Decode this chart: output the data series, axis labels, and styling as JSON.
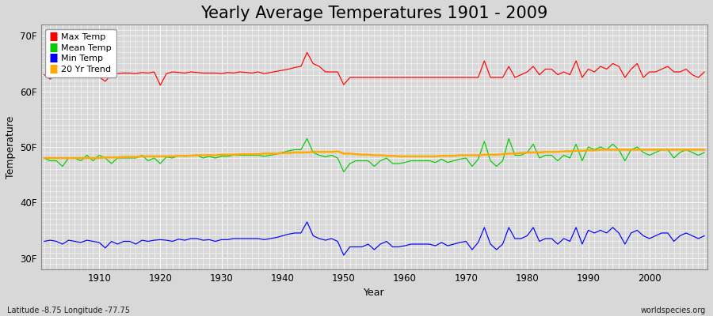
{
  "title": "Yearly Average Temperatures 1901 - 2009",
  "xlabel": "Year",
  "ylabel": "Temperature",
  "bottom_left": "Latitude -8.75 Longitude -77.75",
  "bottom_right": "worldspecies.org",
  "years": [
    1901,
    1902,
    1903,
    1904,
    1905,
    1906,
    1907,
    1908,
    1909,
    1910,
    1911,
    1912,
    1913,
    1914,
    1915,
    1916,
    1917,
    1918,
    1919,
    1920,
    1921,
    1922,
    1923,
    1924,
    1925,
    1926,
    1927,
    1928,
    1929,
    1930,
    1931,
    1932,
    1933,
    1934,
    1935,
    1936,
    1937,
    1938,
    1939,
    1940,
    1941,
    1942,
    1943,
    1944,
    1945,
    1946,
    1947,
    1948,
    1949,
    1950,
    1951,
    1952,
    1953,
    1954,
    1955,
    1956,
    1957,
    1958,
    1959,
    1960,
    1961,
    1962,
    1963,
    1964,
    1965,
    1966,
    1967,
    1968,
    1969,
    1970,
    1971,
    1972,
    1973,
    1974,
    1975,
    1976,
    1977,
    1978,
    1979,
    1980,
    1981,
    1982,
    1983,
    1984,
    1985,
    1986,
    1987,
    1988,
    1989,
    1990,
    1991,
    1992,
    1993,
    1994,
    1995,
    1996,
    1997,
    1998,
    1999,
    2000,
    2001,
    2002,
    2003,
    2004,
    2005,
    2006,
    2007,
    2008,
    2009
  ],
  "max_temp": [
    63.0,
    62.2,
    63.2,
    63.3,
    63.4,
    63.3,
    63.5,
    63.0,
    63.2,
    62.6,
    61.8,
    63.1,
    63.2,
    63.3,
    63.3,
    63.2,
    63.4,
    63.3,
    63.5,
    61.1,
    63.2,
    63.5,
    63.4,
    63.3,
    63.5,
    63.4,
    63.3,
    63.3,
    63.3,
    63.2,
    63.4,
    63.3,
    63.5,
    63.4,
    63.3,
    63.5,
    63.2,
    63.4,
    63.6,
    63.8,
    64.0,
    64.3,
    64.5,
    67.0,
    65.0,
    64.5,
    63.5,
    63.5,
    63.5,
    61.2,
    62.5,
    62.5,
    62.5,
    62.5,
    62.5,
    62.5,
    62.5,
    62.5,
    62.5,
    62.5,
    62.5,
    62.5,
    62.5,
    62.5,
    62.5,
    62.5,
    62.5,
    62.5,
    62.5,
    62.5,
    62.5,
    62.5,
    65.5,
    62.5,
    62.5,
    62.5,
    64.5,
    62.5,
    63.0,
    63.5,
    64.5,
    63.0,
    64.0,
    64.0,
    63.0,
    63.5,
    63.0,
    65.5,
    62.5,
    64.0,
    63.5,
    64.5,
    64.0,
    65.0,
    64.5,
    62.5,
    64.0,
    65.0,
    62.5,
    63.5,
    63.5,
    64.0,
    64.5,
    63.5,
    63.5,
    64.0,
    63.0,
    62.5,
    63.5
  ],
  "mean_temp": [
    48.0,
    47.5,
    47.5,
    46.5,
    48.0,
    48.0,
    47.5,
    48.5,
    47.5,
    48.5,
    48.0,
    47.0,
    48.0,
    48.0,
    48.0,
    48.0,
    48.5,
    47.5,
    48.0,
    47.0,
    48.2,
    48.0,
    48.5,
    48.3,
    48.5,
    48.5,
    48.0,
    48.3,
    48.0,
    48.3,
    48.3,
    48.5,
    48.5,
    48.5,
    48.5,
    48.5,
    48.3,
    48.5,
    48.7,
    49.0,
    49.3,
    49.5,
    49.5,
    51.5,
    49.0,
    48.5,
    48.2,
    48.5,
    48.0,
    45.5,
    47.0,
    47.5,
    47.5,
    47.5,
    46.5,
    47.5,
    48.0,
    47.0,
    47.0,
    47.2,
    47.5,
    47.5,
    47.5,
    47.5,
    47.2,
    47.8,
    47.2,
    47.5,
    47.8,
    48.0,
    46.5,
    47.8,
    51.0,
    47.5,
    46.5,
    47.5,
    51.5,
    48.5,
    48.5,
    49.0,
    50.5,
    48.0,
    48.5,
    48.5,
    47.5,
    48.5,
    48.0,
    50.5,
    47.5,
    50.0,
    49.5,
    50.0,
    49.5,
    50.5,
    49.5,
    47.5,
    49.5,
    50.0,
    49.0,
    48.5,
    49.0,
    49.5,
    49.5,
    48.0,
    49.0,
    49.5,
    49.0,
    48.5,
    49.0
  ],
  "min_temp": [
    33.0,
    33.2,
    33.0,
    32.5,
    33.2,
    33.0,
    32.8,
    33.2,
    33.0,
    32.8,
    31.8,
    33.0,
    32.5,
    33.0,
    33.0,
    32.5,
    33.2,
    33.0,
    33.2,
    33.3,
    33.2,
    33.0,
    33.4,
    33.2,
    33.5,
    33.5,
    33.2,
    33.3,
    33.0,
    33.3,
    33.3,
    33.5,
    33.5,
    33.5,
    33.5,
    33.5,
    33.3,
    33.5,
    33.7,
    34.0,
    34.3,
    34.5,
    34.5,
    36.5,
    34.0,
    33.5,
    33.2,
    33.5,
    33.0,
    30.5,
    32.0,
    32.0,
    32.0,
    32.5,
    31.5,
    32.5,
    33.0,
    32.0,
    32.0,
    32.2,
    32.5,
    32.5,
    32.5,
    32.5,
    32.2,
    32.8,
    32.2,
    32.5,
    32.8,
    33.0,
    31.5,
    32.8,
    35.5,
    32.5,
    31.5,
    32.5,
    35.5,
    33.5,
    33.5,
    34.0,
    35.5,
    33.0,
    33.5,
    33.5,
    32.5,
    33.5,
    33.0,
    35.5,
    32.5,
    35.0,
    34.5,
    35.0,
    34.5,
    35.5,
    34.5,
    32.5,
    34.5,
    35.0,
    34.0,
    33.5,
    34.0,
    34.5,
    34.5,
    33.0,
    34.0,
    34.5,
    34.0,
    33.5,
    34.0
  ],
  "trend_20yr": [
    48.0,
    48.0,
    48.0,
    48.0,
    48.0,
    48.0,
    48.0,
    48.0,
    48.0,
    48.0,
    48.1,
    48.1,
    48.1,
    48.2,
    48.2,
    48.2,
    48.3,
    48.3,
    48.3,
    48.3,
    48.3,
    48.3,
    48.4,
    48.4,
    48.4,
    48.5,
    48.5,
    48.5,
    48.5,
    48.6,
    48.6,
    48.6,
    48.7,
    48.7,
    48.7,
    48.7,
    48.8,
    48.8,
    48.8,
    48.9,
    48.9,
    49.0,
    49.0,
    49.0,
    49.1,
    49.1,
    49.1,
    49.1,
    49.2,
    48.8,
    48.8,
    48.7,
    48.6,
    48.6,
    48.5,
    48.5,
    48.4,
    48.4,
    48.3,
    48.3,
    48.3,
    48.3,
    48.3,
    48.3,
    48.3,
    48.4,
    48.4,
    48.4,
    48.5,
    48.5,
    48.5,
    48.5,
    48.6,
    48.6,
    48.6,
    48.7,
    48.8,
    48.8,
    48.9,
    49.0,
    49.0,
    49.0,
    49.1,
    49.1,
    49.1,
    49.2,
    49.2,
    49.3,
    49.3,
    49.4,
    49.4,
    49.5,
    49.5,
    49.5,
    49.5,
    49.5,
    49.5,
    49.5,
    49.5,
    49.5,
    49.5,
    49.5,
    49.5,
    49.5,
    49.5,
    49.5,
    49.5,
    49.5,
    49.5
  ],
  "max_color": "#ff0000",
  "mean_color": "#00cc00",
  "min_color": "#0000ff",
  "trend_color": "#ffaa00",
  "fig_bg_color": "#d8d8d8",
  "plot_bg_color": "#d8d8d8",
  "grid_color": "#ffffff",
  "ylim_min": 28,
  "ylim_max": 72,
  "yticks": [
    30,
    40,
    50,
    60,
    70
  ],
  "ytick_labels": [
    "30F",
    "40F",
    "50F",
    "60F",
    "70F"
  ],
  "xticks": [
    1910,
    1920,
    1930,
    1940,
    1950,
    1960,
    1970,
    1980,
    1990,
    2000
  ],
  "title_fontsize": 15,
  "legend_entries": [
    "Max Temp",
    "Mean Temp",
    "Min Temp",
    "20 Yr Trend"
  ],
  "legend_colors": [
    "#ff0000",
    "#00cc00",
    "#0000ff",
    "#ffaa00"
  ]
}
